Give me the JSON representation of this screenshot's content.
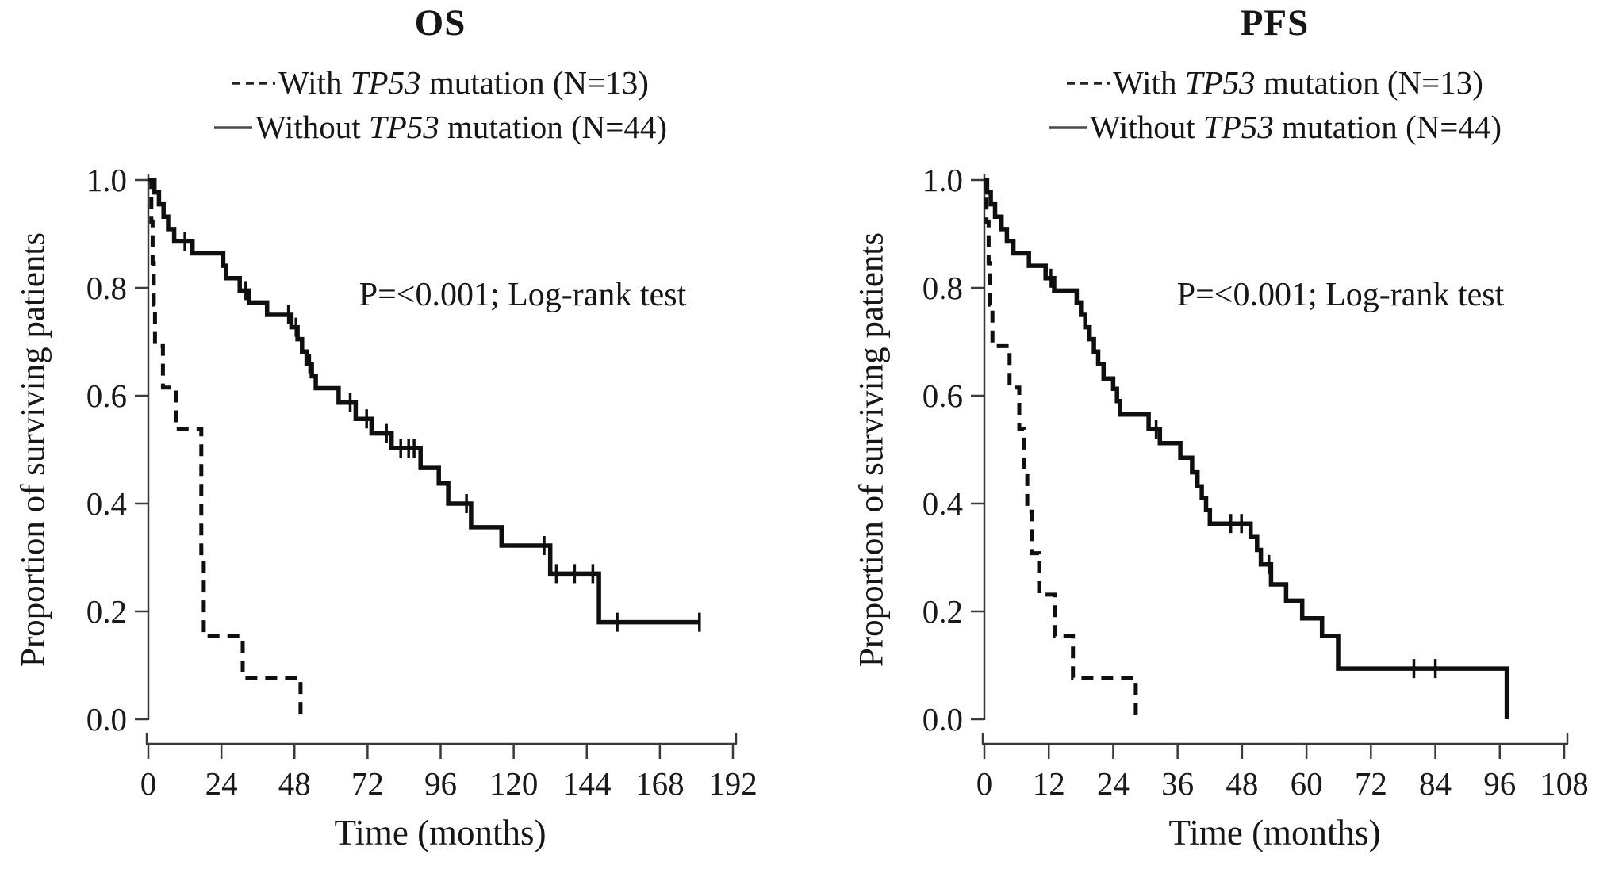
{
  "figure": {
    "background": "#ffffff",
    "curve_color": "#0f0f0f",
    "axis_color": "#3a3a3a"
  },
  "legend": [
    {
      "style": "dashed",
      "pre": "With ",
      "gene": "TP53",
      "post": " mutation (N=13)"
    },
    {
      "style": "solid",
      "pre": "Without ",
      "gene": "TP53",
      "post": " mutation (N=44)"
    }
  ],
  "chart_data": [
    {
      "type": "line",
      "subtype": "kaplan-meier-step",
      "title": "OS",
      "xlabel": "Time (months)",
      "ylabel": "Proportion of surviving patients",
      "annotation": "P=<0.001; Log-rank test",
      "xlim": [
        0,
        192
      ],
      "ylim": [
        0.0,
        1.0
      ],
      "xticks": [
        0,
        24,
        48,
        72,
        96,
        120,
        144,
        168,
        192
      ],
      "yticks": [
        "1.0",
        "0.8",
        "0.6",
        "0.4",
        "0.2",
        "0.0"
      ],
      "grid": false,
      "legend_position": "top-center",
      "series": [
        {
          "name": "With TP53 mutation (N=13)",
          "line_style": "dashed",
          "steps": [
            [
              0,
              1.0
            ],
            [
              1,
              0.923
            ],
            [
              1.4,
              0.846
            ],
            [
              1.8,
              0.769
            ],
            [
              2.2,
              0.692
            ],
            [
              4.8,
              0.615
            ],
            [
              9,
              0.538
            ],
            [
              17.4,
              0.308
            ],
            [
              18.2,
              0.154
            ],
            [
              31,
              0.077
            ],
            [
              50,
              0
            ]
          ],
          "censors": []
        },
        {
          "name": "Without TP53 mutation (N=44)",
          "line_style": "solid",
          "steps": [
            [
              0,
              1.0
            ],
            [
              2,
              0.977
            ],
            [
              3.5,
              0.955
            ],
            [
              5,
              0.932
            ],
            [
              6.5,
              0.909
            ],
            [
              8.5,
              0.886
            ],
            [
              14.5,
              0.864
            ],
            [
              24.6,
              0.841
            ],
            [
              25.5,
              0.818
            ],
            [
              30,
              0.795
            ],
            [
              33,
              0.773
            ],
            [
              39,
              0.75
            ],
            [
              47,
              0.727
            ],
            [
              49,
              0.705
            ],
            [
              50.5,
              0.682
            ],
            [
              52,
              0.659
            ],
            [
              53.7,
              0.636
            ],
            [
              55,
              0.614
            ],
            [
              62.5,
              0.587
            ],
            [
              68.1,
              0.557
            ],
            [
              73.3,
              0.53
            ],
            [
              79.9,
              0.503
            ],
            [
              89.4,
              0.466
            ],
            [
              95.4,
              0.437
            ],
            [
              98.5,
              0.4
            ],
            [
              106,
              0.356
            ],
            [
              116,
              0.322
            ],
            [
              132,
              0.27
            ],
            [
              148,
              0.18
            ]
          ],
          "end_time": 181,
          "censors": [
            [
              12,
              0.886
            ],
            [
              32,
              0.795
            ],
            [
              46,
              0.75
            ],
            [
              48.5,
              0.727
            ],
            [
              53,
              0.659
            ],
            [
              66.3,
              0.587
            ],
            [
              71.7,
              0.557
            ],
            [
              78.2,
              0.53
            ],
            [
              82.9,
              0.503
            ],
            [
              85.5,
              0.503
            ],
            [
              87.3,
              0.503
            ],
            [
              104.5,
              0.4
            ],
            [
              130,
              0.322
            ],
            [
              134,
              0.27
            ],
            [
              140,
              0.27
            ],
            [
              146,
              0.27
            ],
            [
              154,
              0.18
            ],
            [
              181,
              0.18
            ]
          ]
        }
      ]
    },
    {
      "type": "line",
      "subtype": "kaplan-meier-step",
      "title": "PFS",
      "xlabel": "Time (months)",
      "ylabel": "Proportion of surviving patients",
      "annotation": "P=<0.001; Log-rank test",
      "xlim": [
        0,
        108
      ],
      "ylim": [
        0.0,
        1.0
      ],
      "xticks": [
        0,
        12,
        24,
        36,
        48,
        60,
        72,
        84,
        96,
        108
      ],
      "yticks": [
        "1.0",
        "0.8",
        "0.6",
        "0.4",
        "0.2",
        "0.0"
      ],
      "grid": false,
      "legend_position": "top-center",
      "series": [
        {
          "name": "With TP53 mutation (N=13)",
          "line_style": "dashed",
          "steps": [
            [
              0,
              1.0
            ],
            [
              0.4,
              0.923
            ],
            [
              0.8,
              0.846
            ],
            [
              1.1,
              0.769
            ],
            [
              1.5,
              0.692
            ],
            [
              4.7,
              0.615
            ],
            [
              6.5,
              0.538
            ],
            [
              7.4,
              0.462
            ],
            [
              8,
              0.385
            ],
            [
              8.8,
              0.308
            ],
            [
              10.2,
              0.231
            ],
            [
              13.1,
              0.154
            ],
            [
              16.5,
              0.077
            ],
            [
              28.2,
              0
            ]
          ],
          "censors": []
        },
        {
          "name": "Without TP53 mutation (N=44)",
          "line_style": "solid",
          "steps": [
            [
              0,
              1.0
            ],
            [
              0.5,
              0.977
            ],
            [
              1.2,
              0.955
            ],
            [
              2,
              0.932
            ],
            [
              3.2,
              0.909
            ],
            [
              4.2,
              0.886
            ],
            [
              5.4,
              0.864
            ],
            [
              8.3,
              0.841
            ],
            [
              11.4,
              0.818
            ],
            [
              13,
              0.795
            ],
            [
              17.2,
              0.773
            ],
            [
              18,
              0.75
            ],
            [
              18.8,
              0.727
            ],
            [
              19.6,
              0.705
            ],
            [
              20.4,
              0.682
            ],
            [
              21.2,
              0.659
            ],
            [
              22.2,
              0.632
            ],
            [
              24,
              0.613
            ],
            [
              24.7,
              0.59
            ],
            [
              25.3,
              0.565
            ],
            [
              30.6,
              0.538
            ],
            [
              32.7,
              0.512
            ],
            [
              36.5,
              0.485
            ],
            [
              38.7,
              0.458
            ],
            [
              39.7,
              0.432
            ],
            [
              40.5,
              0.41
            ],
            [
              41.3,
              0.388
            ],
            [
              42,
              0.363
            ],
            [
              49.6,
              0.338
            ],
            [
              50.8,
              0.314
            ],
            [
              51.5,
              0.287
            ],
            [
              53.4,
              0.25
            ],
            [
              56.2,
              0.22
            ],
            [
              59.2,
              0.187
            ],
            [
              62.9,
              0.154
            ],
            [
              65.9,
              0.094
            ],
            [
              97.3,
              0
            ]
          ],
          "censors": [
            [
              12.4,
              0.818
            ],
            [
              32,
              0.538
            ],
            [
              45.9,
              0.363
            ],
            [
              47.9,
              0.363
            ],
            [
              53,
              0.287
            ],
            [
              80,
              0.094
            ],
            [
              84,
              0.094
            ]
          ]
        }
      ]
    }
  ]
}
